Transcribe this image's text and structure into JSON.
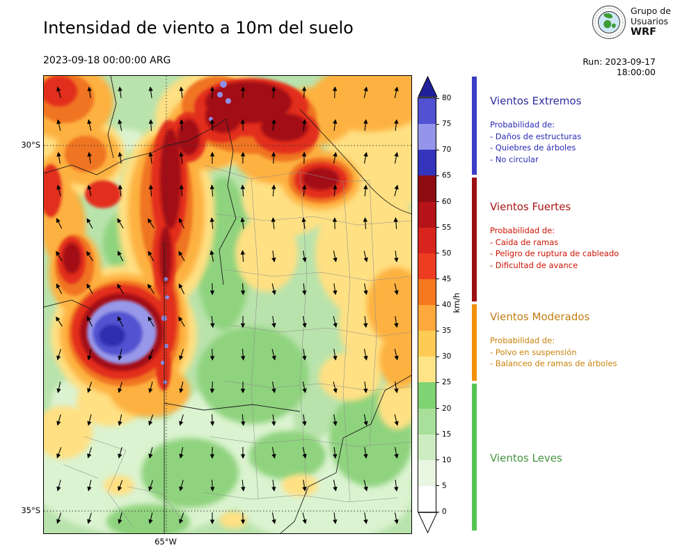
{
  "header": {
    "title": "Intensidad de viento a 10m del suelo",
    "valid_time": "2023-09-18 00:00:00 ARG",
    "run_label": "Run: 2023-09-17 18:00:00",
    "logo": {
      "line1": "Grupo de",
      "line2": "Usuarios",
      "line3": "WRF"
    }
  },
  "map_axes": {
    "lat_tick_top": "30°S",
    "lat_tick_bottom": "35°S",
    "lon_tick": "65°W"
  },
  "colorbar": {
    "unit": "km/h",
    "ticks": [
      0,
      5,
      10,
      15,
      20,
      25,
      30,
      35,
      40,
      45,
      50,
      55,
      60,
      65,
      70,
      75,
      80
    ],
    "segment_colors": [
      "#ffffff",
      "#e8f6e2",
      "#cdecc2",
      "#a8df9a",
      "#7ed472",
      "#ffe487",
      "#fecb55",
      "#fda83a",
      "#f5781e",
      "#ed3c21",
      "#d8241c",
      "#b41417",
      "#8d0c12",
      "#3434bd",
      "#9494ea",
      "#5151d2"
    ],
    "over_color": "#20209a",
    "under_color": "#ffffff"
  },
  "legend": {
    "sections": [
      {
        "title": "Vientos Extremos",
        "title_color": "#2b2b9e",
        "text_color": "#2929b4",
        "strip_color": "#3c3cc8",
        "subtitle": "Probabilidad de:",
        "items": [
          "- Daños de estructuras",
          "- Quiebres de árboles",
          "- No circular"
        ]
      },
      {
        "title": "Vientos Fuertes",
        "title_color": "#a81414",
        "text_color": "#cc1100",
        "strip_color": "#9b0e12",
        "subtitle": "Probabilidad de:",
        "items": [
          "- Caida de ramas",
          "- Peligro de ruptura de cableado",
          "- Dificultad de avance"
        ]
      },
      {
        "title": "Vientos Moderados",
        "title_color": "#c07d12",
        "text_color": "#c8820a",
        "strip_color": "#f29009",
        "subtitle": "Probabilidad de:",
        "items": [
          "- Polvo en suspensión",
          "- Balanceo de ramas de árboles"
        ]
      },
      {
        "title": "Vientos Leves",
        "title_color": "#44953f",
        "text_color": "#44953f",
        "strip_color": "#55c455",
        "subtitle": "",
        "items": []
      }
    ]
  },
  "chart_data": {
    "type": "heatmap",
    "title": "Intensidad de viento a 10m del suelo",
    "valid_time": "2023-09-18 00:00:00 ARG",
    "model_run": "Run: 2023-09-17 18:00:00",
    "unit": "km/h",
    "colorbar_levels": [
      0,
      5,
      10,
      15,
      20,
      25,
      30,
      35,
      40,
      45,
      50,
      55,
      60,
      65,
      70,
      75,
      80
    ],
    "colorbar_colors": [
      "#ffffff",
      "#e8f6e2",
      "#cdecc2",
      "#a8df9a",
      "#7ed472",
      "#ffe487",
      "#fecb55",
      "#fda83a",
      "#f5781e",
      "#ed3c21",
      "#d8241c",
      "#b41417",
      "#8d0c12",
      "#3434bd",
      "#9494ea",
      "#5151d2"
    ],
    "colorbar_extend": "both",
    "lat_ticks": [
      "30°S",
      "35°S"
    ],
    "lon_ticks": [
      "65°W"
    ],
    "overlay": "wind direction arrows (quiver) over filled wind-speed contours with province boundaries",
    "categories": [
      {
        "name": "Vientos Leves",
        "range_kmh": [
          0,
          25
        ]
      },
      {
        "name": "Vientos Moderados",
        "range_kmh": [
          25,
          40
        ]
      },
      {
        "name": "Vientos Fuertes",
        "range_kmh": [
          40,
          65
        ]
      },
      {
        "name": "Vientos Extremos",
        "range_kmh": "65+"
      }
    ]
  }
}
